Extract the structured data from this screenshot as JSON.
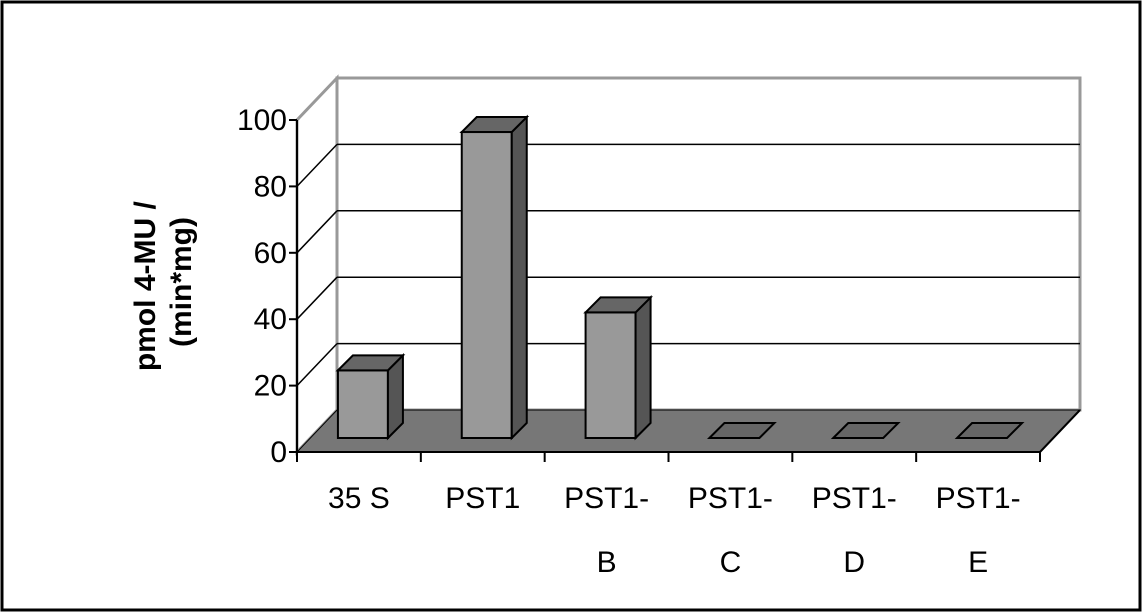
{
  "chart_data": {
    "type": "bar",
    "style": "3d-column",
    "title": "",
    "xlabel": "",
    "ylabel_lines": [
      "pmol 4-MU /",
      "(min*mg)"
    ],
    "categories": [
      {
        "lines": [
          "35 S"
        ]
      },
      {
        "lines": [
          "PST1"
        ]
      },
      {
        "lines": [
          "PST1-",
          "B"
        ]
      },
      {
        "lines": [
          "PST1-",
          "C"
        ]
      },
      {
        "lines": [
          "PST1-",
          "D"
        ]
      },
      {
        "lines": [
          "PST1-",
          "E"
        ]
      }
    ],
    "values": [
      21,
      95,
      39,
      0,
      0,
      0
    ],
    "ylim": [
      0,
      100
    ],
    "yticks": [
      "0",
      "20",
      "40",
      "60",
      "80",
      "100"
    ],
    "grid": true,
    "legend": "none",
    "colors": {
      "bar_front": "#999999",
      "bar_side": "#555555",
      "bar_top": "#666666",
      "floor": "#777777",
      "walls": "#999999",
      "gridline": "#000000"
    }
  }
}
